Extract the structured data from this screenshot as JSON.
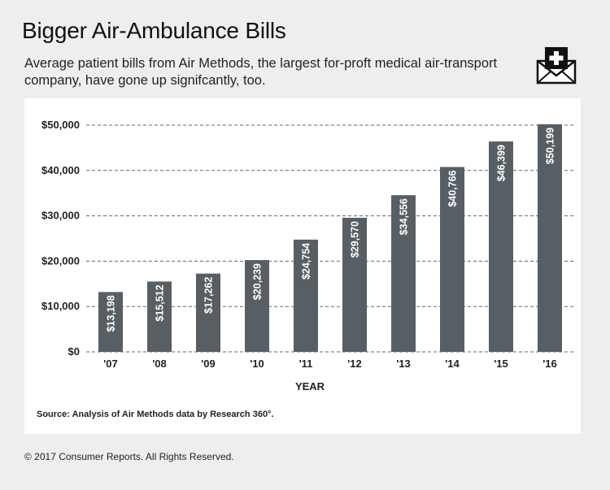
{
  "header": {
    "title": "Bigger Air-Ambulance Bills",
    "subtitle": "Average patient bills from Air Methods, the largest for-proft medical air-transport company, have gone up signifcantly, too."
  },
  "icon": {
    "name": "medical-envelope-icon"
  },
  "colors": {
    "bar": "#575f65",
    "bar_label": "#ffffff",
    "grid": "#666666",
    "background": "#eeeeee",
    "panel": "#ffffff"
  },
  "chart_data": {
    "type": "bar",
    "title": "",
    "xlabel": "YEAR",
    "ylabel": "",
    "categories": [
      "'07",
      "'08",
      "'09",
      "'10",
      "'11",
      "'12",
      "'13",
      "'14",
      "'15",
      "'16"
    ],
    "values": [
      13198,
      15512,
      17262,
      20239,
      24754,
      29570,
      34556,
      40766,
      46399,
      50199
    ],
    "value_labels": [
      "$13,198",
      "$15,512",
      "$17,262",
      "$20,239",
      "$24,754",
      "$29,570",
      "$34,556",
      "$40,766",
      "$46,399",
      "$50,199"
    ],
    "ylim": [
      0,
      50000
    ],
    "yticks": [
      0,
      10000,
      20000,
      30000,
      40000,
      50000
    ],
    "ytick_labels": [
      "$0",
      "$10,000",
      "$20,000",
      "$30,000",
      "$40,000",
      "$50,000"
    ],
    "grid": "horizontal dashed",
    "legend": "none",
    "source": "Source: Analysis of Air Methods data by Research 360°."
  },
  "footer": {
    "copyright": "© 2017 Consumer Reports. All Rights Reserved."
  }
}
